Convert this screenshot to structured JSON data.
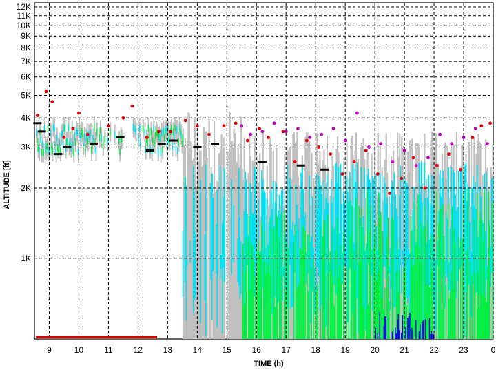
{
  "chart_data": {
    "type": "scatter",
    "title": "",
    "xlabel": "TIME (h)",
    "ylabel": "ALTITUDE [ft]",
    "x_ticks": [
      9,
      10,
      11,
      12,
      13,
      14,
      15,
      16,
      17,
      18,
      19,
      20,
      21,
      22,
      23,
      0
    ],
    "xlim": [
      8.5,
      24
    ],
    "y_scale": "log",
    "y_ticks": [
      {
        "label": "1K",
        "value": 1000
      },
      {
        "label": "2K",
        "value": 2000
      },
      {
        "label": "3K",
        "value": 3000
      },
      {
        "label": "4K",
        "value": 4000
      },
      {
        "label": "5K",
        "value": 5000
      },
      {
        "label": "6K",
        "value": 6000
      },
      {
        "label": "7K",
        "value": 7000
      },
      {
        "label": "8K",
        "value": 8000
      },
      {
        "label": "9K",
        "value": 9000
      },
      {
        "label": "10K",
        "value": 10000
      },
      {
        "label": "11K",
        "value": 11000
      },
      {
        "label": "12K",
        "value": 12000
      }
    ],
    "ylim": [
      450,
      12500
    ],
    "grid": true,
    "grid_style": "dashed",
    "series_colors": {
      "gray_backscatter": "#c0c0c0",
      "cyan_layer": "#00e0f0",
      "green_layer": "#00f040",
      "blue_layer": "#0000e0",
      "black_base": "#000000",
      "red_points": "#e00000",
      "magenta_points": "#c000c0",
      "precip_flags": "#d00000"
    },
    "series": [
      {
        "key": "black_base",
        "x": [
          8.6,
          8.75,
          9.3,
          9.6,
          10.5,
          11.4,
          12.4,
          12.8,
          13.2,
          14.0,
          14.6,
          16.2,
          17.5,
          18.3
        ],
        "y": [
          3800,
          3500,
          2800,
          3000,
          3100,
          3300,
          2900,
          3100,
          3200,
          3000,
          3100,
          2600,
          2500,
          2400
        ]
      },
      {
        "key": "red_points",
        "x": [
          8.6,
          8.9,
          9.1,
          9.5,
          9.8,
          10.0,
          10.3,
          11.0,
          11.5,
          11.8,
          12.3,
          12.7,
          13.1,
          13.6,
          14.0,
          14.4,
          14.9,
          15.3,
          15.7,
          16.1,
          16.4,
          16.9,
          17.3,
          17.7,
          18.1,
          18.5,
          18.9,
          19.3,
          19.7,
          20.1,
          20.5,
          20.9,
          21.3,
          21.7,
          22.1,
          22.5,
          22.9,
          23.3,
          23.6,
          23.9
        ],
        "y": [
          4100,
          5200,
          4700,
          3300,
          3600,
          4200,
          3400,
          3700,
          4000,
          4500,
          3300,
          3500,
          3500,
          3900,
          3700,
          3400,
          3700,
          3800,
          3200,
          3600,
          3300,
          3500,
          2600,
          3200,
          3000,
          2800,
          2300,
          2600,
          2900,
          2300,
          1900,
          2200,
          2700,
          2000,
          2500,
          2800,
          2400,
          3300,
          3700,
          3800
        ]
      },
      {
        "key": "magenta_points",
        "x": [
          15.5,
          15.8,
          16.2,
          16.6,
          17.0,
          17.4,
          17.8,
          18.2,
          18.6,
          19.0,
          19.4,
          19.8,
          20.2,
          20.6,
          21.0,
          21.4,
          21.8,
          22.2,
          22.6,
          23.0,
          23.4,
          23.8
        ],
        "y": [
          3700,
          3400,
          3500,
          3800,
          3500,
          3600,
          3300,
          3400,
          3600,
          3200,
          4200,
          3000,
          3100,
          2600,
          2900,
          2500,
          2700,
          3400,
          3100,
          3300,
          3600,
          3100
        ]
      }
    ],
    "precipitation_flags": {
      "x_start": 8.55,
      "x_end": 12.6,
      "y": 455
    }
  }
}
